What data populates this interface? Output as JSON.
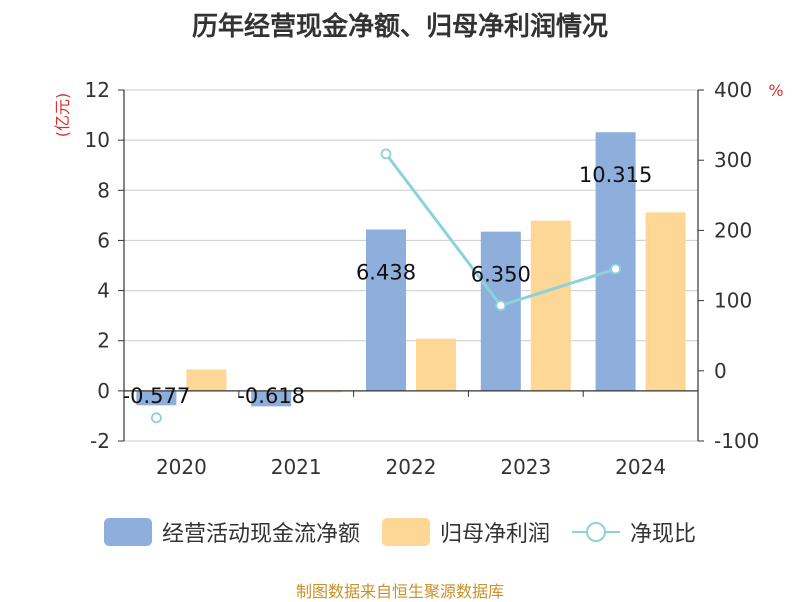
{
  "chart_data": {
    "type": "bar",
    "title": "历年经营现金净额、归母净利润情况",
    "categories": [
      "2020",
      "2021",
      "2022",
      "2023",
      "2024"
    ],
    "series": [
      {
        "name": "经营活动现金流净额",
        "kind": "bar",
        "axis": "left",
        "color": "#8eaedc",
        "values": [
          -0.577,
          -0.618,
          6.438,
          6.35,
          10.315
        ],
        "labels": [
          "-0.577",
          "-0.618",
          "6.438",
          "6.350",
          "10.315"
        ]
      },
      {
        "name": "归母净利润",
        "kind": "bar",
        "axis": "left",
        "color": "#fdd796",
        "values": [
          0.85,
          -0.05,
          2.08,
          6.79,
          7.12
        ]
      },
      {
        "name": "净现比",
        "kind": "line",
        "axis": "right",
        "color": "#8cd2da",
        "values": [
          -67,
          null,
          309,
          93,
          145
        ]
      }
    ],
    "y_left": {
      "label": "(亿元)",
      "min": -2,
      "max": 12,
      "ticks": [
        -2,
        0,
        2,
        4,
        6,
        8,
        10,
        12
      ]
    },
    "y_right": {
      "label": "%",
      "min": -100,
      "max": 400,
      "ticks": [
        -100,
        0,
        100,
        200,
        300,
        400
      ]
    },
    "grid": true,
    "legend_position": "bottom"
  },
  "source": "制图数据来自恒生聚源数据库"
}
